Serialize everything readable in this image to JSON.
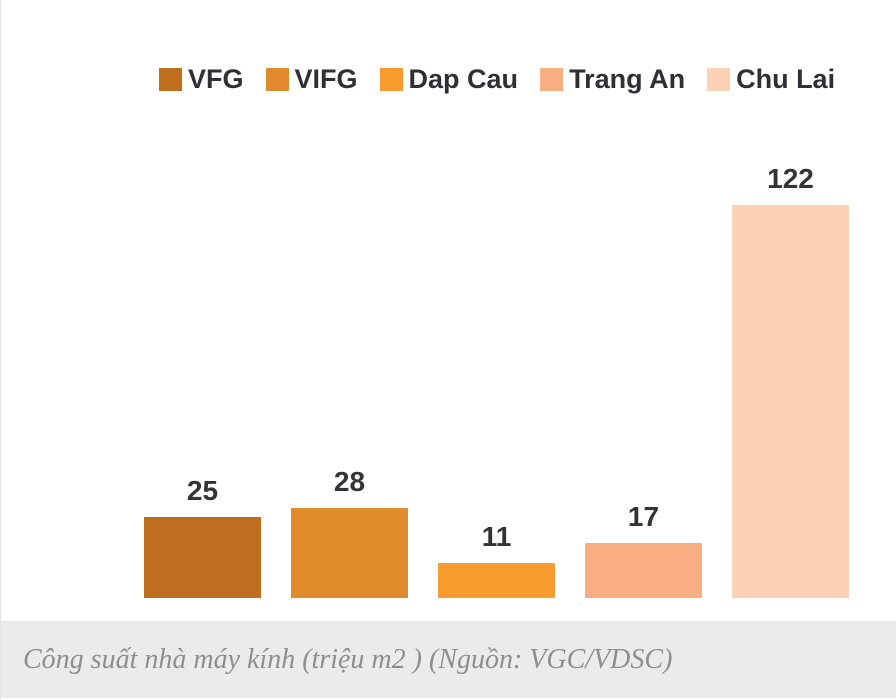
{
  "chart_data": {
    "type": "bar",
    "title": "",
    "categories": [
      "VFG",
      "VIFG",
      "Dap Cau",
      "Trang An",
      "Chu Lai"
    ],
    "values": [
      25,
      28,
      11,
      17,
      122
    ],
    "colors": [
      "#BD6E1E",
      "#E18A2C",
      "#F89C30",
      "#F9AF82",
      "#FBD2B6"
    ],
    "ylim": [
      0,
      122
    ],
    "xlabel": "",
    "ylabel": "",
    "grid": false,
    "axes_shown": false,
    "value_labels_shown": true,
    "legend_position": "top"
  },
  "caption": {
    "text": "Công suất nhà máy kính (triệu m2 ) (Nguồn: VGC/VDSC)"
  },
  "style_colors": {
    "value_label_text": "#33333A",
    "legend_text": "#2F2F36",
    "caption_text": "#8E8E8E",
    "caption_background": "#EBEBEB",
    "chart_background": "#FFFFFF"
  }
}
